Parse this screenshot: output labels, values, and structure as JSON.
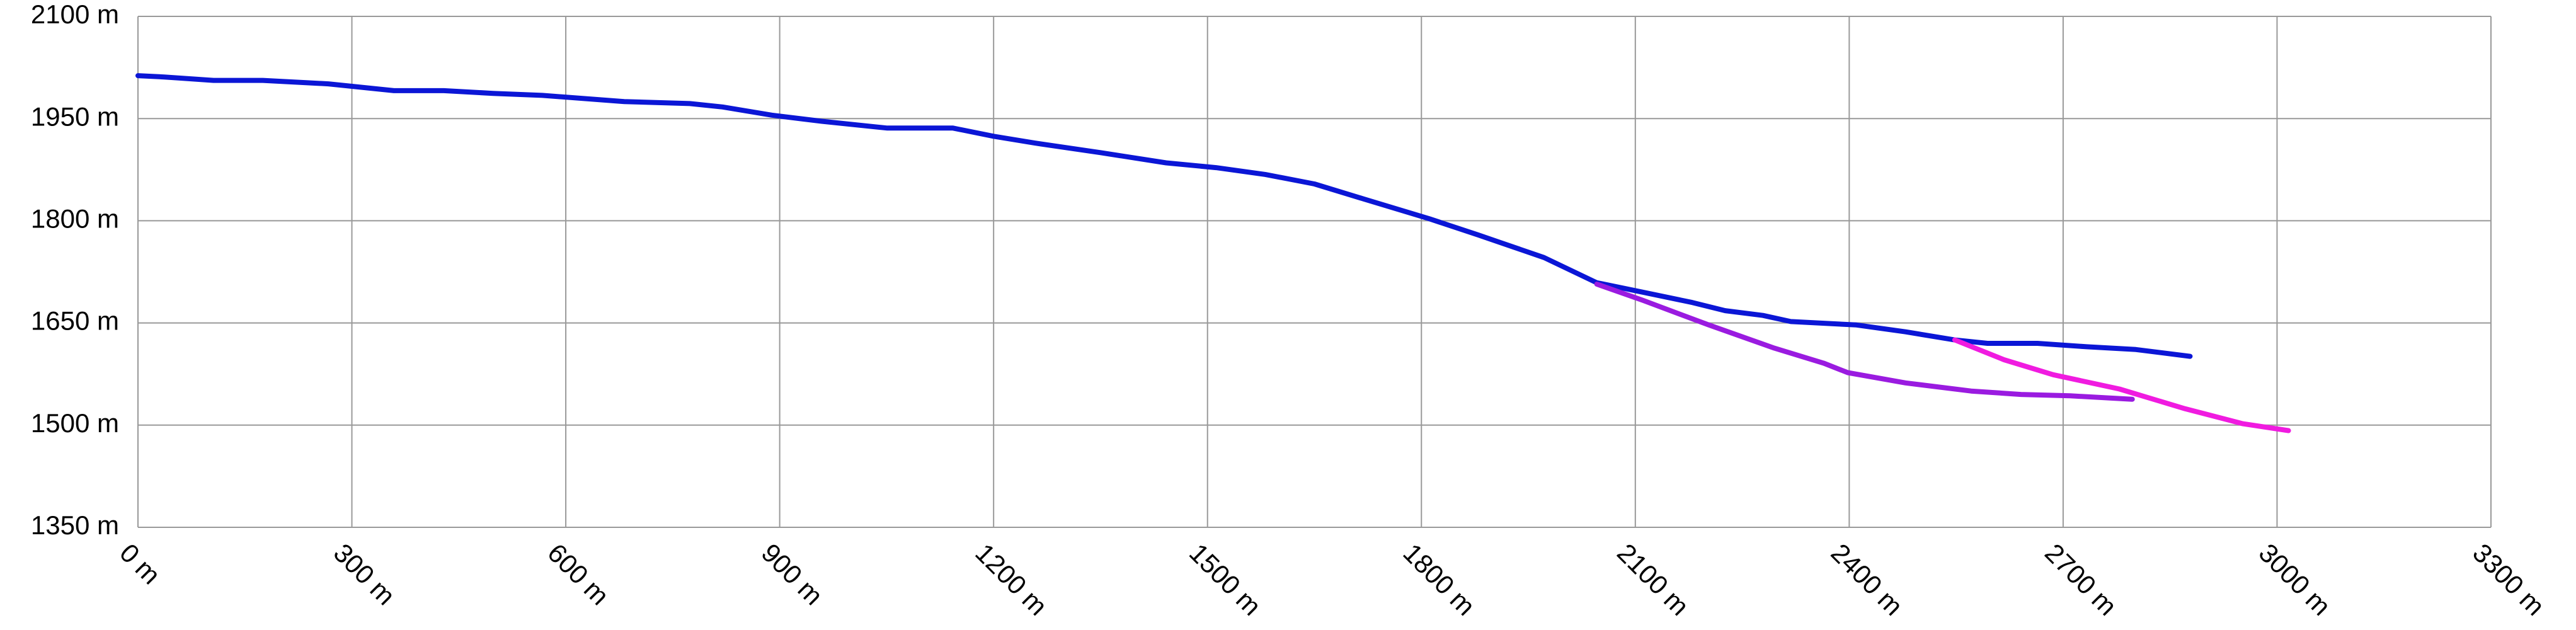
{
  "chart_data": {
    "type": "line",
    "xlim": [
      0,
      3300
    ],
    "xticks": [
      {
        "value": 0,
        "label": "0 m"
      },
      {
        "value": 300,
        "label": "300 m"
      },
      {
        "value": 600,
        "label": "600 m"
      },
      {
        "value": 900,
        "label": "900 m"
      },
      {
        "value": 1200,
        "label": "1200 m"
      },
      {
        "value": 1500,
        "label": "1500 m"
      },
      {
        "value": 1800,
        "label": "1800 m"
      },
      {
        "value": 2100,
        "label": "2100 m"
      },
      {
        "value": 2400,
        "label": "2400 m"
      },
      {
        "value": 2700,
        "label": "2700 m"
      },
      {
        "value": 3000,
        "label": "3000 m"
      },
      {
        "value": 3300,
        "label": "3300 m"
      }
    ],
    "ylim": [
      1350,
      2100
    ],
    "yticks": [
      {
        "value": 1350,
        "label": "1350 m"
      },
      {
        "value": 1500,
        "label": "1500 m"
      },
      {
        "value": 1650,
        "label": "1650 m"
      },
      {
        "value": 1800,
        "label": "1800 m"
      },
      {
        "value": 1950,
        "label": "1950 m"
      },
      {
        "value": 2100,
        "label": "2100 m"
      }
    ],
    "grid": true,
    "series": [
      {
        "color": "#0b16d6",
        "x": [
          0,
          37,
          106,
          175,
          267,
          359,
          429,
          498,
          567,
          682,
          774,
          820,
          889,
          959,
          1051,
          1143,
          1200,
          1258,
          1350,
          1442,
          1512,
          1581,
          1650,
          1719,
          1811,
          1880,
          1972,
          2046,
          2111,
          2180,
          2226,
          2279,
          2318,
          2410,
          2479,
          2548,
          2594,
          2664,
          2733,
          2802,
          2878
        ],
        "values": [
          2013,
          2011,
          2006,
          2006,
          2001,
          1991,
          1991,
          1987,
          1984,
          1975,
          1972,
          1967,
          1955,
          1946,
          1936,
          1936,
          1924,
          1914,
          1900,
          1885,
          1878,
          1868,
          1854,
          1832,
          1803,
          1779,
          1746,
          1709,
          1695,
          1680,
          1668,
          1661,
          1652,
          1647,
          1637,
          1625,
          1620,
          1620,
          1615,
          1611,
          1601
        ]
      },
      {
        "color": "#9a1be0",
        "x": [
          2046,
          2111,
          2203,
          2295,
          2364,
          2398,
          2479,
          2571,
          2641,
          2710,
          2797
        ],
        "values": [
          1707,
          1683,
          1647,
          1613,
          1591,
          1577,
          1562,
          1550,
          1545,
          1543,
          1538
        ]
      },
      {
        "color": "#f01be0",
        "x": [
          2548,
          2617,
          2686,
          2779,
          2871,
          2952,
          3016
        ],
        "values": [
          1625,
          1596,
          1574,
          1553,
          1524,
          1502,
          1492
        ]
      }
    ]
  }
}
